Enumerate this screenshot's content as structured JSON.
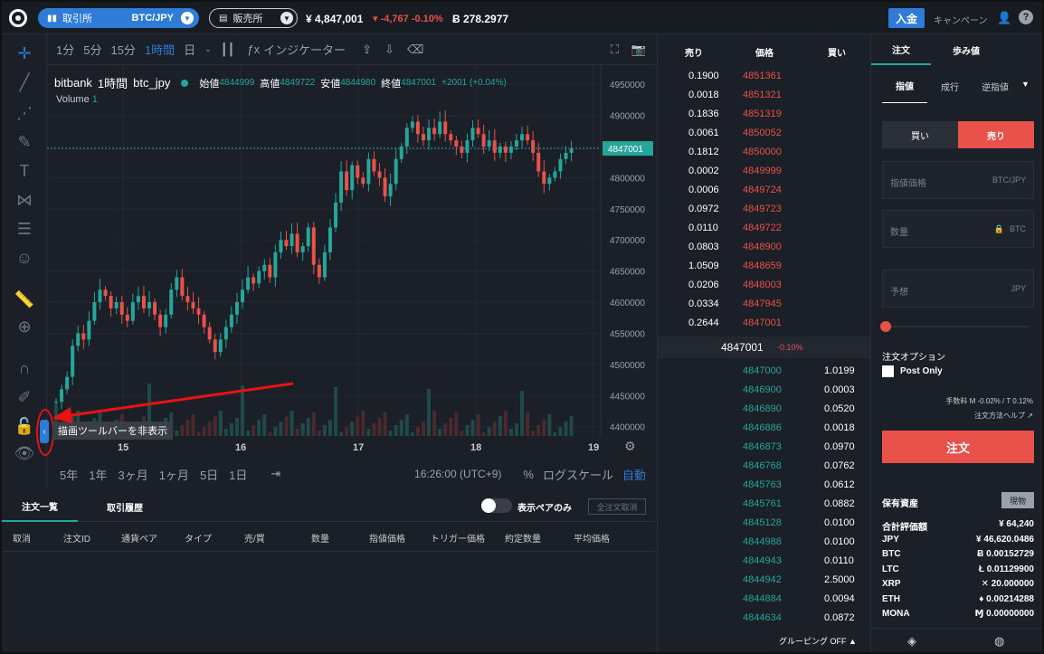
{
  "topbar": {
    "exchange_label": "取引所",
    "pair": "BTC/JPY",
    "shop_label": "販売所",
    "price": "¥ 4,847,001",
    "change": "-4,767 -0.10%",
    "btc_value": "Ƀ 278.2977",
    "deposit": "入金",
    "campaign": "キャンペーン"
  },
  "chart_toolbar": {
    "intervals": [
      "1分",
      "5分",
      "15分",
      "1時間",
      "日"
    ],
    "active_interval": "1時間",
    "indicator": "インジケーター"
  },
  "legend": {
    "exchange": "bitbank",
    "interval": "1時間",
    "symbol": "btc_jpy",
    "open_label": "始値",
    "open": "4844999",
    "high_label": "高値",
    "high": "4849722",
    "low_label": "安値",
    "low": "4844980",
    "close_label": "終値",
    "close": "4847001",
    "change": "+2001 (+0.04%)",
    "volume_label": "Volume",
    "volume": "1"
  },
  "tooltip": "描画ツールバーを非表示",
  "chart_data": {
    "type": "candlestick",
    "y_ticks": [
      "4950000",
      "4900000",
      "4850000",
      "4800000",
      "4750000",
      "4700000",
      "4650000",
      "4600000",
      "4550000",
      "4500000",
      "4450000",
      "4400000"
    ],
    "ylim": [
      4385000,
      4975000
    ],
    "x_ticks": [
      "15",
      "16",
      "17",
      "18",
      "19"
    ],
    "last_price": "4847001",
    "close_series": [
      4440000,
      4460000,
      4480000,
      4530000,
      4550000,
      4540000,
      4570000,
      4600000,
      4620000,
      4610000,
      4590000,
      4600000,
      4580000,
      4570000,
      4600000,
      4610000,
      4590000,
      4600000,
      4580000,
      4560000,
      4580000,
      4620000,
      4640000,
      4610000,
      4600000,
      4590000,
      4580000,
      4560000,
      4540000,
      4520000,
      4540000,
      4560000,
      4580000,
      4600000,
      4620000,
      4640000,
      4630000,
      4650000,
      4660000,
      4640000,
      4680000,
      4700000,
      4690000,
      4710000,
      4680000,
      4690000,
      4720000,
      4660000,
      4640000,
      4680000,
      4720000,
      4760000,
      4810000,
      4780000,
      4820000,
      4800000,
      4790000,
      4830000,
      4810000,
      4800000,
      4770000,
      4790000,
      4830000,
      4850000,
      4880000,
      4890000,
      4870000,
      4860000,
      4880000,
      4870000,
      4890000,
      4870000,
      4860000,
      4850000,
      4840000,
      4860000,
      4880000,
      4870000,
      4850000,
      4860000,
      4840000,
      4850000,
      4840000,
      4850000,
      4860000,
      4870000,
      4860000,
      4840000,
      4810000,
      4790000,
      4800000,
      4810000,
      4830000,
      4840000,
      4847001
    ]
  },
  "range_bar": {
    "ranges": [
      "5年",
      "1年",
      "3ヶ月",
      "1ヶ月",
      "5日",
      "1日"
    ],
    "time": "16:26:00 (UTC+9)",
    "percent": "%",
    "log": "ログスケール",
    "auto": "自動"
  },
  "orders": {
    "tab_list": "注文一覧",
    "tab_history": "取引履歴",
    "toggle_label": "表示ペアのみ",
    "cancel_all": "全注文取消",
    "columns": [
      "取消",
      "注文ID",
      "通貨ペア",
      "タイプ",
      "売/買",
      "数量",
      "指値価格",
      "トリガー価格",
      "約定数量",
      "平均価格"
    ]
  },
  "book": {
    "hdr_sell": "売り",
    "hdr_price": "価格",
    "hdr_buy": "買い",
    "asks": [
      [
        "0.1900",
        "4851361"
      ],
      [
        "0.0018",
        "4851321"
      ],
      [
        "0.1836",
        "4851319"
      ],
      [
        "0.0061",
        "4850052"
      ],
      [
        "0.1812",
        "4850000"
      ],
      [
        "0.0002",
        "4849999"
      ],
      [
        "0.0006",
        "4849724"
      ],
      [
        "0.0972",
        "4849723"
      ],
      [
        "0.0110",
        "4849722"
      ],
      [
        "0.0803",
        "4848900"
      ],
      [
        "1.0509",
        "4848659"
      ],
      [
        "0.0206",
        "4848003"
      ],
      [
        "0.0334",
        "4847945"
      ],
      [
        "0.2644",
        "4847001"
      ]
    ],
    "mid_price": "4847001",
    "mid_change": "-0.10%",
    "bids": [
      [
        "4847000",
        "1.0199"
      ],
      [
        "4846900",
        "0.0003"
      ],
      [
        "4846890",
        "0.0520"
      ],
      [
        "4846886",
        "0.0018"
      ],
      [
        "4846873",
        "0.0970"
      ],
      [
        "4846768",
        "0.0762"
      ],
      [
        "4845763",
        "0.0612"
      ],
      [
        "4845761",
        "0.0882"
      ],
      [
        "4845128",
        "0.0100"
      ],
      [
        "4844988",
        "0.0100"
      ],
      [
        "4844943",
        "0.0110"
      ],
      [
        "4844942",
        "2.5000"
      ],
      [
        "4844884",
        "0.0094"
      ],
      [
        "4844634",
        "0.0872"
      ]
    ],
    "grouping": "グルーピング OFF"
  },
  "panel": {
    "tab_order": "注文",
    "tab_trades": "歩み値",
    "types": [
      "指値",
      "成行",
      "逆指値"
    ],
    "buy": "買い",
    "sell": "売り",
    "price_label": "指値価格",
    "price_unit": "BTC/JPY",
    "qty_label": "数量",
    "qty_unit": "BTC",
    "est_label": "予想",
    "est_unit": "JPY",
    "options": "注文オプション",
    "post_only": "Post Only",
    "fee": "手数料 M -0.02% / T 0.12%",
    "help": "注文方法ヘルプ",
    "submit": "注文",
    "assets_title": "保有資産",
    "spot": "現物",
    "assets": [
      [
        "合計評価額",
        "¥ 64,240"
      ],
      [
        "JPY",
        "¥ 46,620.0486"
      ],
      [
        "BTC",
        "Ƀ 0.00152729"
      ],
      [
        "LTC",
        "Ł 0.01129900"
      ],
      [
        "XRP",
        "✕ 20.000000"
      ],
      [
        "ETH",
        "♦ 0.00214288"
      ],
      [
        "MONA",
        "Ɱ 0.00000000"
      ]
    ]
  }
}
